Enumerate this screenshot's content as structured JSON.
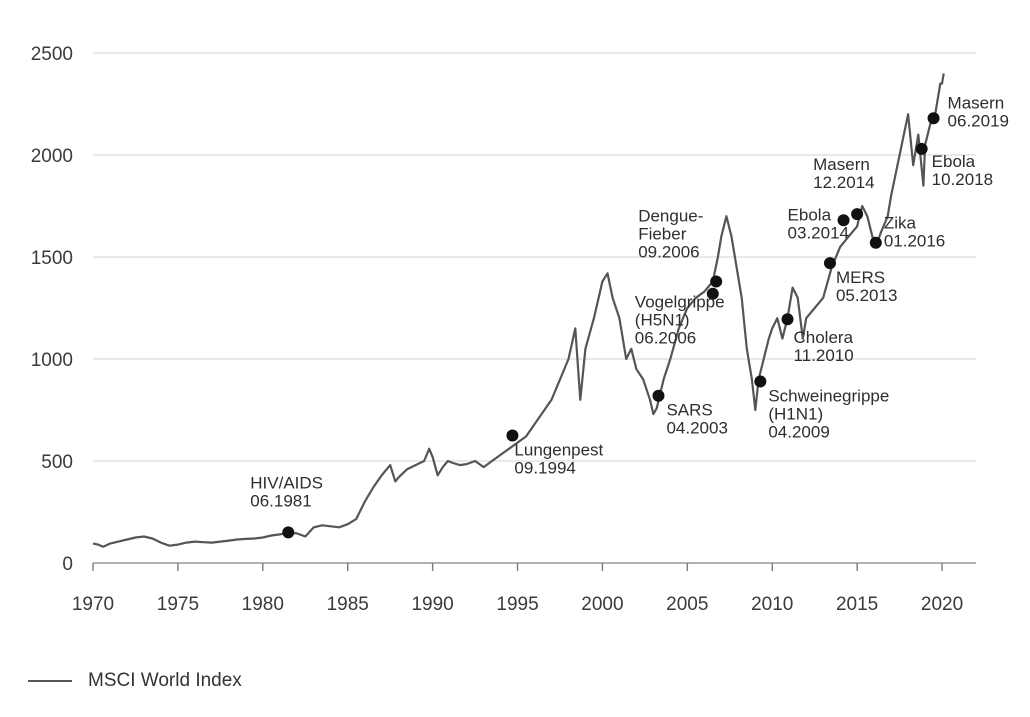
{
  "chart_data": {
    "type": "line",
    "title": "",
    "xlabel": "",
    "ylabel": "",
    "xlim": [
      1970,
      2022
    ],
    "ylim": [
      0,
      2500
    ],
    "grid": true,
    "x_ticks": [
      1970,
      1975,
      1980,
      1985,
      1990,
      1995,
      2000,
      2005,
      2010,
      2015,
      2020
    ],
    "y_ticks": [
      0,
      500,
      1000,
      1500,
      2000,
      2500
    ],
    "legend": {
      "position": "bottom-left",
      "entries": [
        "MSCI World Index"
      ]
    },
    "series": [
      {
        "name": "MSCI World Index",
        "color": "#555555",
        "x": [
          1970.0,
          1970.3,
          1970.6,
          1971.0,
          1971.5,
          1972.0,
          1972.5,
          1973.0,
          1973.5,
          1974.0,
          1974.5,
          1975.0,
          1975.5,
          1976.0,
          1976.5,
          1977.0,
          1977.5,
          1978.0,
          1978.5,
          1979.0,
          1979.5,
          1980.0,
          1980.5,
          1981.0,
          1981.5,
          1982.0,
          1982.5,
          1983.0,
          1983.5,
          1984.0,
          1984.5,
          1985.0,
          1985.5,
          1986.0,
          1986.5,
          1987.0,
          1987.5,
          1987.8,
          1988.0,
          1988.5,
          1989.0,
          1989.5,
          1989.8,
          1990.0,
          1990.3,
          1990.6,
          1990.9,
          1991.2,
          1991.6,
          1992.0,
          1992.5,
          1993.0,
          1993.5,
          1994.0,
          1994.5,
          1995.0,
          1995.5,
          1996.0,
          1996.5,
          1997.0,
          1997.5,
          1998.0,
          1998.4,
          1998.7,
          1999.0,
          1999.5,
          2000.0,
          2000.3,
          2000.6,
          2001.0,
          2001.4,
          2001.7,
          2002.0,
          2002.4,
          2002.8,
          2003.0,
          2003.2,
          2003.6,
          2004.0,
          2004.5,
          2005.0,
          2005.5,
          2006.0,
          2006.5,
          2006.8,
          2007.0,
          2007.3,
          2007.6,
          2007.9,
          2008.2,
          2008.5,
          2008.8,
          2009.0,
          2009.2,
          2009.5,
          2009.8,
          2010.0,
          2010.3,
          2010.6,
          2010.9,
          2011.2,
          2011.5,
          2011.8,
          2012.0,
          2012.5,
          2013.0,
          2013.5,
          2014.0,
          2014.5,
          2015.0,
          2015.3,
          2015.6,
          2015.9,
          2016.1,
          2016.4,
          2016.8,
          2017.0,
          2017.5,
          2018.0,
          2018.3,
          2018.6,
          2018.9,
          2019.0,
          2019.3,
          2019.6,
          2019.9,
          2020.0,
          2020.1
        ],
        "values": [
          95,
          90,
          80,
          95,
          105,
          115,
          125,
          130,
          120,
          100,
          85,
          90,
          100,
          105,
          102,
          100,
          105,
          110,
          115,
          118,
          120,
          125,
          135,
          140,
          150,
          145,
          130,
          175,
          185,
          180,
          175,
          190,
          215,
          300,
          370,
          430,
          480,
          400,
          420,
          460,
          480,
          500,
          560,
          520,
          430,
          470,
          500,
          490,
          480,
          485,
          500,
          470,
          500,
          530,
          560,
          590,
          620,
          680,
          740,
          800,
          900,
          1000,
          1150,
          800,
          1050,
          1200,
          1380,
          1420,
          1300,
          1200,
          1000,
          1050,
          950,
          900,
          800,
          730,
          760,
          900,
          1000,
          1150,
          1250,
          1300,
          1330,
          1380,
          1500,
          1600,
          1700,
          1600,
          1450,
          1300,
          1050,
          900,
          750,
          900,
          1000,
          1100,
          1150,
          1200,
          1100,
          1200,
          1350,
          1300,
          1100,
          1200,
          1250,
          1300,
          1450,
          1550,
          1600,
          1650,
          1750,
          1700,
          1600,
          1550,
          1620,
          1700,
          1800,
          2000,
          2200,
          1950,
          2100,
          1850,
          2050,
          2150,
          2200,
          2350,
          2350,
          2400
        ]
      }
    ],
    "annotations": [
      {
        "lines": [
          "HIV/AIDS",
          "06.1981"
        ],
        "x": 1981.5,
        "y": 150
      },
      {
        "lines": [
          "Lungenpest",
          "09.1994"
        ],
        "x": 1994.7,
        "y": 625
      },
      {
        "lines": [
          "SARS",
          "04.2003"
        ],
        "x": 2003.3,
        "y": 820
      },
      {
        "lines": [
          "Vogelgrippe",
          "(H5N1)",
          "06.2006"
        ],
        "x": 2006.5,
        "y": 1320
      },
      {
        "lines": [
          "Dengue-",
          "Fieber",
          "09.2006"
        ],
        "x": 2006.7,
        "y": 1380
      },
      {
        "lines": [
          "Schweinegrippe",
          "(H1N1)",
          "04.2009"
        ],
        "x": 2009.3,
        "y": 890
      },
      {
        "lines": [
          "Cholera",
          "11.2010"
        ],
        "x": 2010.9,
        "y": 1195
      },
      {
        "lines": [
          "MERS",
          "05.2013"
        ],
        "x": 2013.4,
        "y": 1470
      },
      {
        "lines": [
          "Ebola",
          "03.2014"
        ],
        "x": 2014.2,
        "y": 1680
      },
      {
        "lines": [
          "Masern",
          "12.2014"
        ],
        "x": 2015.0,
        "y": 1710
      },
      {
        "lines": [
          "Zika",
          "01.2016"
        ],
        "x": 2016.1,
        "y": 1570
      },
      {
        "lines": [
          "Ebola",
          "10.2018"
        ],
        "x": 2018.8,
        "y": 2030
      },
      {
        "lines": [
          "Masern",
          "06.2019"
        ],
        "x": 2019.5,
        "y": 2180
      }
    ]
  }
}
